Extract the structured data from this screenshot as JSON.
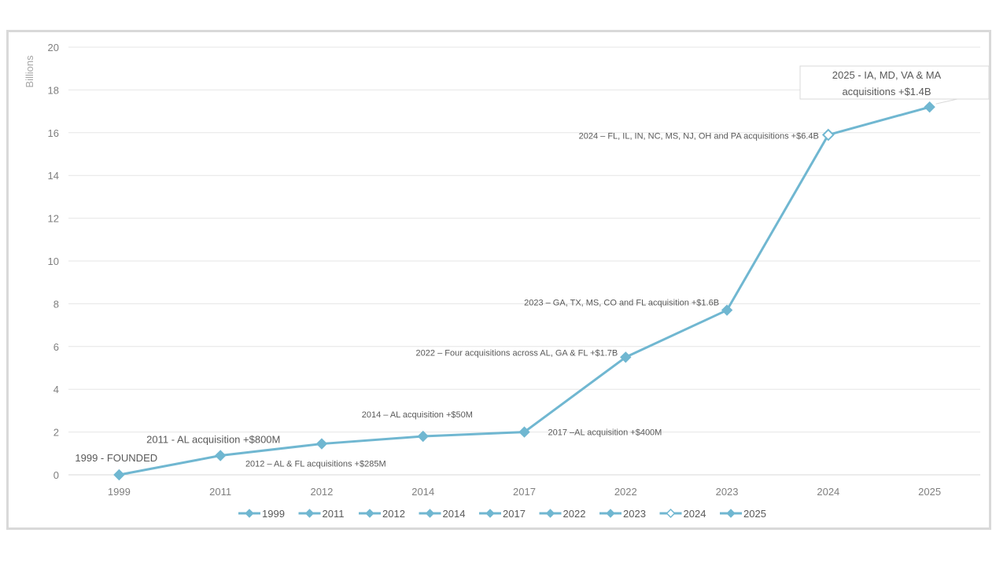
{
  "chart_data": {
    "type": "line",
    "ylabel": "Billions",
    "ylim": [
      0,
      20
    ],
    "yticks": [
      0,
      2,
      4,
      6,
      8,
      10,
      12,
      14,
      16,
      18,
      20
    ],
    "grid": true,
    "legend_position": "bottom",
    "line_color": "#70b7d1",
    "categories": [
      "1999",
      "2011",
      "2012",
      "2014",
      "2017",
      "2022",
      "2023",
      "2024",
      "2025"
    ],
    "values": [
      0,
      0.9,
      1.45,
      1.8,
      2.0,
      5.5,
      7.7,
      15.9,
      17.2
    ],
    "marker_styles": [
      "filled",
      "filled",
      "filled",
      "filled",
      "filled",
      "filled",
      "filled",
      "hollow",
      "filled"
    ],
    "legend": [
      "1999",
      "2011",
      "2012",
      "2014",
      "2017",
      "2022",
      "2023",
      "2024",
      "2025"
    ],
    "annotations": [
      {
        "category": "1999",
        "text": "1999 - FOUNDED",
        "size": "large",
        "placement": "above"
      },
      {
        "category": "2011",
        "text": "2011 - AL acquisition +$800M",
        "size": "large",
        "placement": "above"
      },
      {
        "category": "2012",
        "text": "2012 – AL & FL acquisitions +$285M",
        "size": "small",
        "placement": "below"
      },
      {
        "category": "2014",
        "text": "2014 – AL acquisition +$50M",
        "size": "small",
        "placement": "above"
      },
      {
        "category": "2017",
        "text": "2017 –AL acquisition +$400M",
        "size": "small",
        "placement": "right"
      },
      {
        "category": "2022",
        "text": "2022 – Four acquisitions across AL, GA & FL +$1.7B",
        "size": "small",
        "placement": "left"
      },
      {
        "category": "2023",
        "text": "2023 – GA, TX, MS, CO and FL acquisition +$1.6B",
        "size": "small",
        "placement": "left"
      },
      {
        "category": "2024",
        "text": "2024 – FL, IL, IN, NC, MS, NJ, OH and PA acquisitions +$6.4B",
        "size": "small",
        "placement": "left"
      },
      {
        "category": "2025",
        "lines": [
          "2025 - IA, MD, VA & MA",
          "acquisitions +$1.4B"
        ],
        "size": "large",
        "placement": "callout"
      }
    ]
  }
}
